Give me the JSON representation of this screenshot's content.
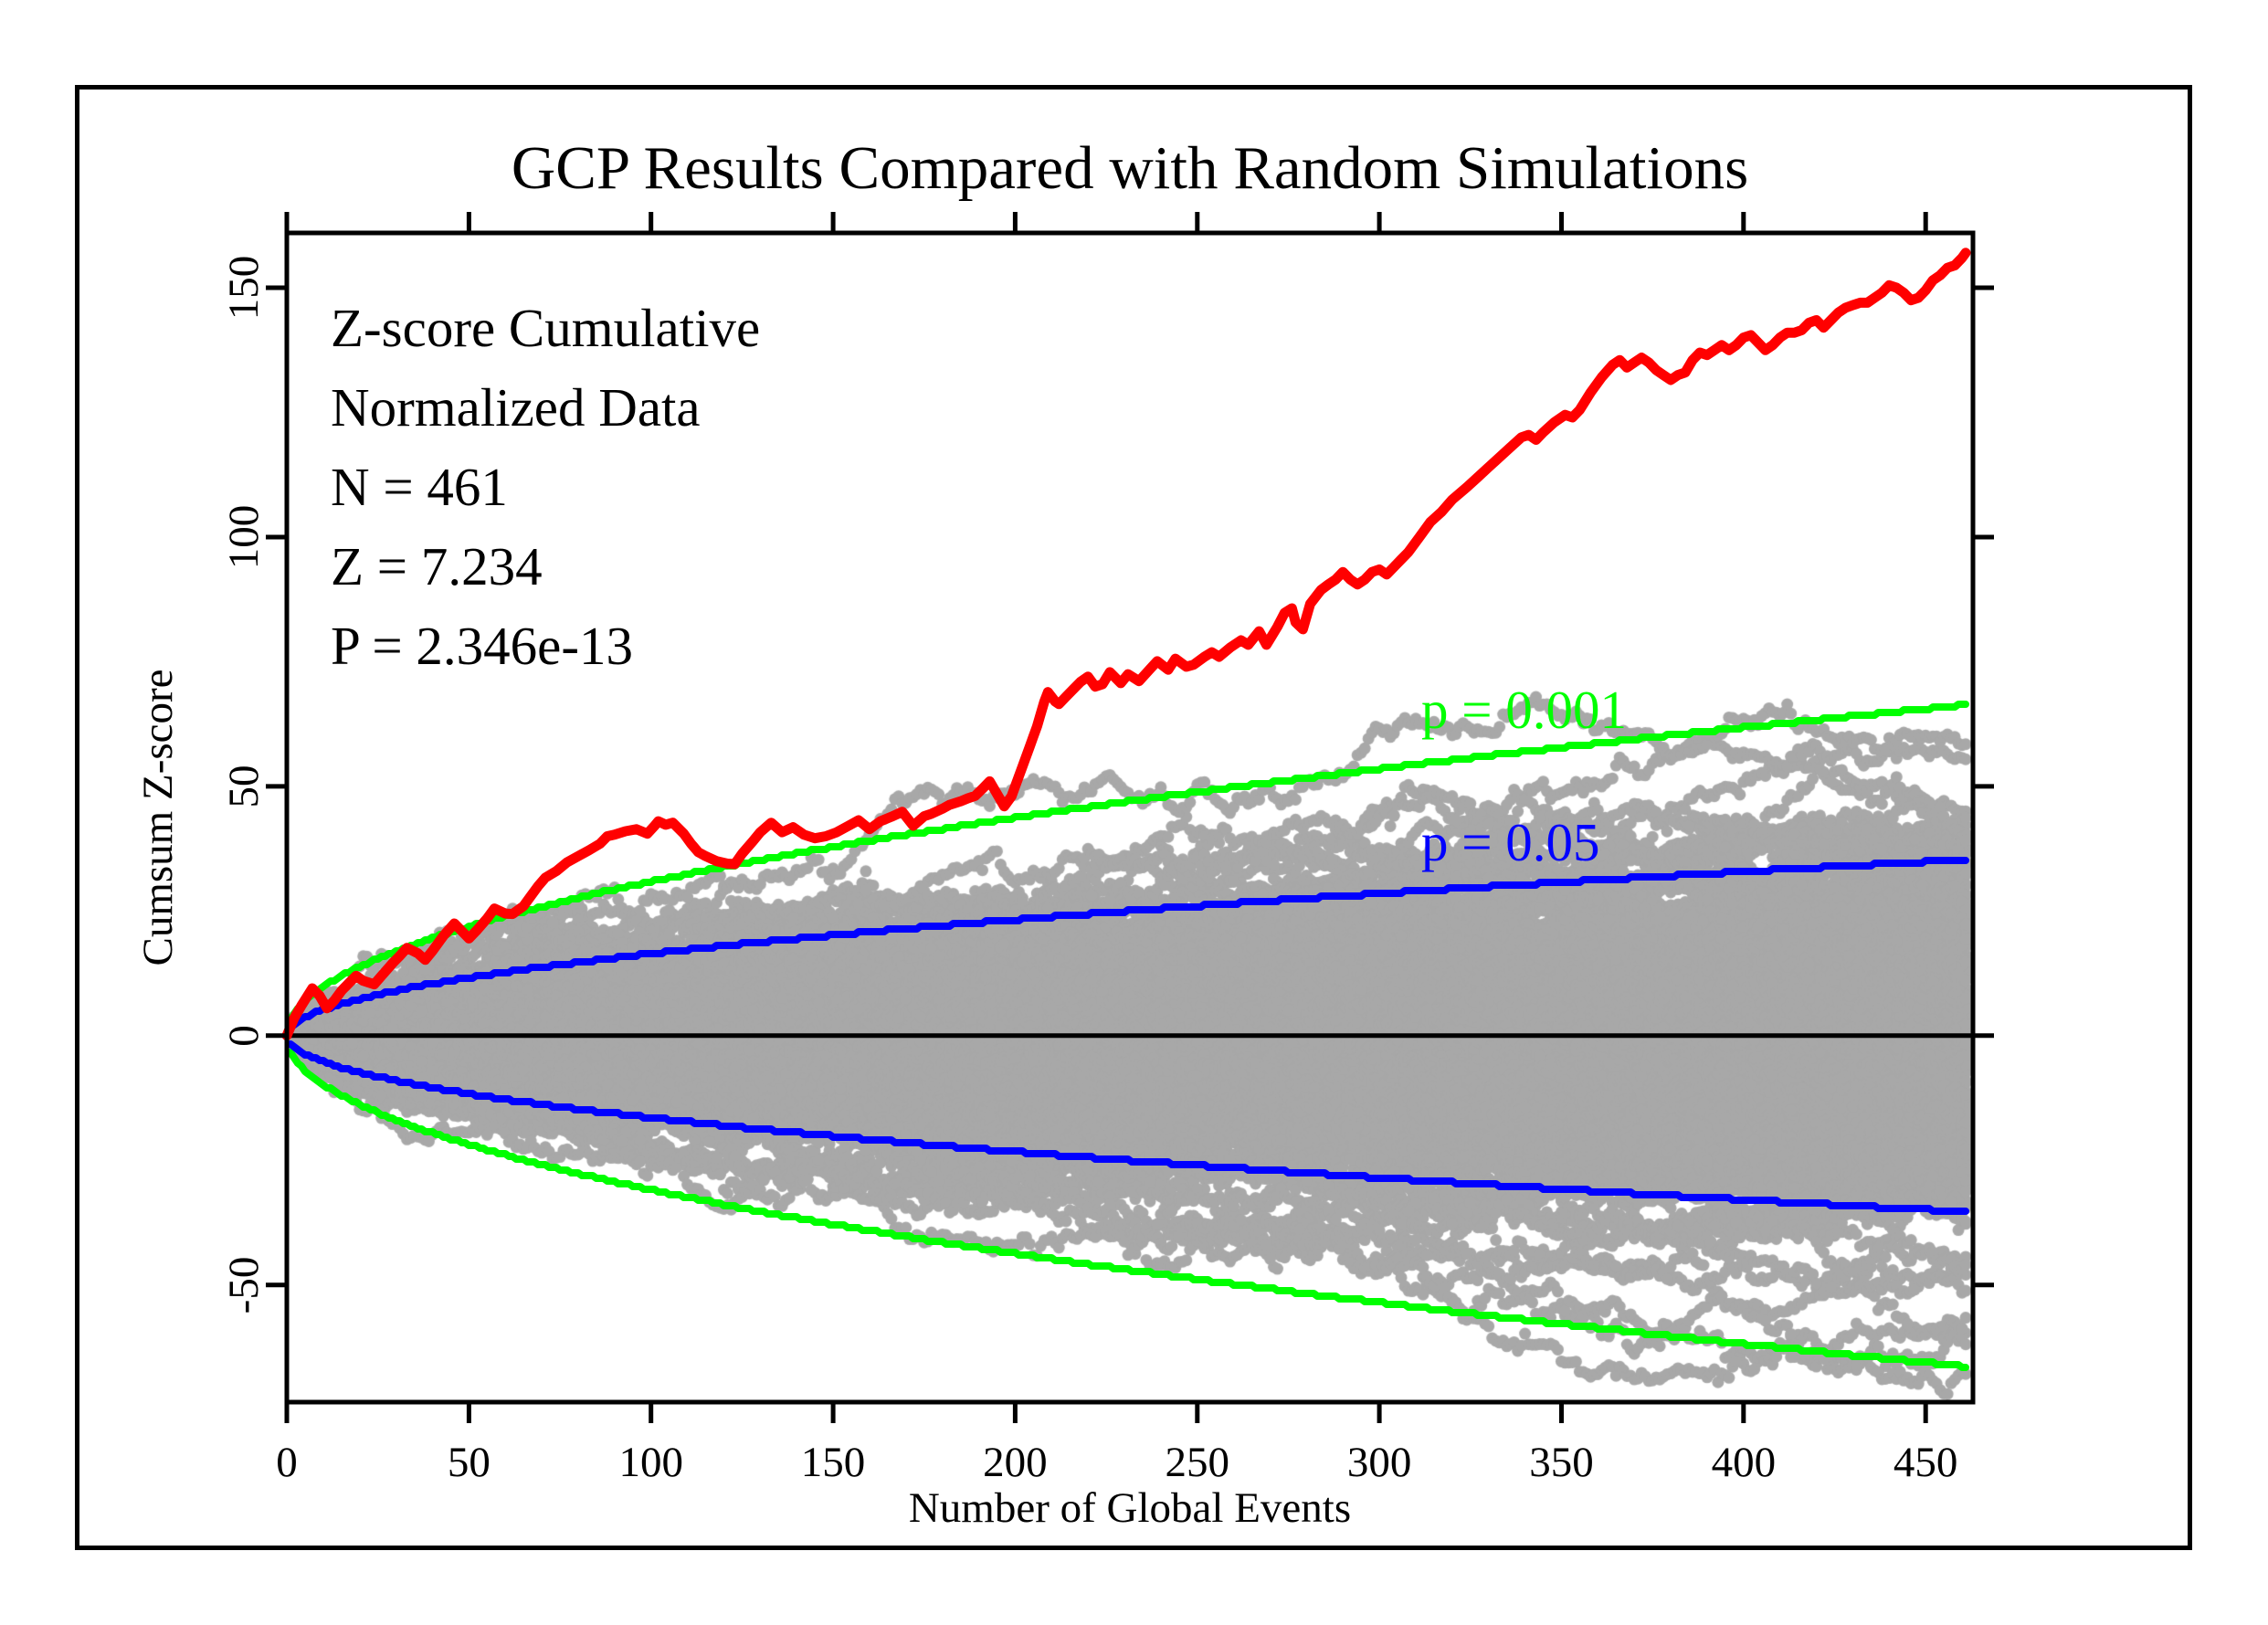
{
  "title": "GCP Results Compared with Random Simulations",
  "annotation": [
    "Z-score Cumulative",
    "Normalized Data",
    "N = 461",
    "Z = 7.234",
    "P = 2.346e-13"
  ],
  "labels": {
    "p001": "p = 0.001",
    "p05": "p = 0.05"
  },
  "colors": {
    "red": "#ff0000",
    "green": "#00ff00",
    "blue": "#0000ff",
    "gray": "#a8a8a8",
    "axis": "#000000",
    "background": "#ffffff"
  },
  "chart_data": {
    "type": "line",
    "title": "GCP Results Compared with Random Simulations",
    "xlabel": "Number of Global Events",
    "ylabel": "Cumsum Z-score",
    "xlim": [
      0,
      463
    ],
    "ylim": [
      -73.5,
      161
    ],
    "x_ticks": [
      0,
      50,
      100,
      150,
      200,
      250,
      300,
      350,
      400,
      450
    ],
    "y_ticks": [
      -50,
      0,
      50,
      100,
      150
    ],
    "mirror_ticks": true,
    "grid": false,
    "zero_line": true,
    "stats": {
      "N": 461,
      "Z": 7.234,
      "P": "2.346e-13"
    },
    "envelopes": [
      {
        "name": "p = 0.001",
        "p": 0.001,
        "z": 3.09,
        "color": "#00ff00",
        "two_sided": true
      },
      {
        "name": "p = 0.05",
        "p": 0.05,
        "z": 1.645,
        "color": "#0000ff",
        "two_sided": true
      }
    ],
    "series": [
      {
        "name": "GCP cumulative Z-score (normalized data)",
        "color": "#ff0000",
        "points": [
          [
            0,
            0
          ],
          [
            2,
            3.5
          ],
          [
            4,
            6
          ],
          [
            7,
            9.5
          ],
          [
            9,
            8
          ],
          [
            11,
            5.5
          ],
          [
            13,
            7
          ],
          [
            15,
            9
          ],
          [
            17,
            10.5
          ],
          [
            19,
            12
          ],
          [
            21,
            11
          ],
          [
            24,
            10.3
          ],
          [
            26,
            12
          ],
          [
            29,
            14.5
          ],
          [
            31,
            16
          ],
          [
            33,
            17.6
          ],
          [
            36,
            16.5
          ],
          [
            38,
            15.2
          ],
          [
            40,
            17
          ],
          [
            43,
            20
          ],
          [
            46,
            22.5
          ],
          [
            48,
            21
          ],
          [
            50,
            19.5
          ],
          [
            52,
            21
          ],
          [
            55,
            23.5
          ],
          [
            57,
            25.5
          ],
          [
            60,
            24.5
          ],
          [
            62,
            24.4
          ],
          [
            65,
            26
          ],
          [
            67,
            28
          ],
          [
            69,
            30
          ],
          [
            71,
            31.7
          ],
          [
            74,
            33
          ],
          [
            77,
            34.8
          ],
          [
            80,
            36
          ],
          [
            83,
            37.2
          ],
          [
            86,
            38.5
          ],
          [
            88,
            40
          ],
          [
            90,
            40.3
          ],
          [
            93,
            41
          ],
          [
            96,
            41.4
          ],
          [
            99,
            40.5
          ],
          [
            101,
            42.1
          ],
          [
            102,
            43
          ],
          [
            104,
            42.3
          ],
          [
            106,
            42.7
          ],
          [
            109,
            40.5
          ],
          [
            111,
            38.5
          ],
          [
            113,
            36.8
          ],
          [
            115,
            36
          ],
          [
            118,
            35
          ],
          [
            121,
            34.5
          ],
          [
            123,
            34.4
          ],
          [
            125,
            36.5
          ],
          [
            128,
            39
          ],
          [
            130,
            40.8
          ],
          [
            133,
            42.7
          ],
          [
            136,
            40.8
          ],
          [
            139,
            41.8
          ],
          [
            142,
            40.3
          ],
          [
            145,
            39.6
          ],
          [
            148,
            40
          ],
          [
            151,
            40.8
          ],
          [
            154,
            42
          ],
          [
            157,
            43.2
          ],
          [
            160,
            41.4
          ],
          [
            163,
            43
          ],
          [
            166,
            43.9
          ],
          [
            169,
            44.9
          ],
          [
            172,
            42.1
          ],
          [
            175,
            44
          ],
          [
            177,
            44.5
          ],
          [
            180,
            45.5
          ],
          [
            182,
            46.3
          ],
          [
            185,
            47
          ],
          [
            187,
            47.6
          ],
          [
            189,
            48.1
          ],
          [
            191,
            49.5
          ],
          [
            193,
            51
          ],
          [
            195,
            48.5
          ],
          [
            197,
            46
          ],
          [
            199,
            48
          ],
          [
            200,
            50
          ],
          [
            202,
            54
          ],
          [
            204,
            58
          ],
          [
            205,
            60
          ],
          [
            206,
            62
          ],
          [
            207,
            64.5
          ],
          [
            208,
            67
          ],
          [
            209,
            68.9
          ],
          [
            211,
            67
          ],
          [
            212,
            66.5
          ],
          [
            214,
            68
          ],
          [
            216,
            69.5
          ],
          [
            218,
            71
          ],
          [
            220,
            72
          ],
          [
            222,
            70
          ],
          [
            224,
            70.5
          ],
          [
            226,
            72.9
          ],
          [
            229,
            70.7
          ],
          [
            231,
            72.5
          ],
          [
            234,
            71.1
          ],
          [
            237,
            73.5
          ],
          [
            239,
            75.1
          ],
          [
            242,
            73.4
          ],
          [
            244,
            75.6
          ],
          [
            247,
            74
          ],
          [
            249,
            74.4
          ],
          [
            252,
            76
          ],
          [
            254,
            76.9
          ],
          [
            256,
            76
          ],
          [
            259,
            77.8
          ],
          [
            262,
            79.3
          ],
          [
            264,
            78.4
          ],
          [
            267,
            81.1
          ],
          [
            269,
            78.4
          ],
          [
            272,
            82
          ],
          [
            274,
            84.8
          ],
          [
            276,
            85.7
          ],
          [
            277,
            82.9
          ],
          [
            279,
            81.5
          ],
          [
            281,
            86.6
          ],
          [
            284,
            89.4
          ],
          [
            286,
            90.5
          ],
          [
            288,
            91.5
          ],
          [
            290,
            93
          ],
          [
            292,
            91.5
          ],
          [
            294,
            90.5
          ],
          [
            296,
            91.5
          ],
          [
            298,
            93
          ],
          [
            300,
            93.5
          ],
          [
            302,
            92.5
          ],
          [
            304,
            94
          ],
          [
            306,
            95.5
          ],
          [
            308,
            97
          ],
          [
            311,
            100
          ],
          [
            314,
            103
          ],
          [
            317,
            105
          ],
          [
            320,
            107.5
          ],
          [
            324,
            110
          ],
          [
            327,
            112
          ],
          [
            330,
            114
          ],
          [
            333,
            116
          ],
          [
            336,
            118
          ],
          [
            339,
            120
          ],
          [
            341,
            120.5
          ],
          [
            343,
            119.5
          ],
          [
            345,
            121
          ],
          [
            348,
            123
          ],
          [
            351,
            124.5
          ],
          [
            353,
            124
          ],
          [
            355,
            125.5
          ],
          [
            358,
            129
          ],
          [
            361,
            132
          ],
          [
            364,
            134.5
          ],
          [
            366,
            135.5
          ],
          [
            368,
            134
          ],
          [
            370,
            135
          ],
          [
            372,
            136
          ],
          [
            374,
            135
          ],
          [
            376,
            133.5
          ],
          [
            378,
            132.5
          ],
          [
            380,
            131.5
          ],
          [
            382,
            132.5
          ],
          [
            384,
            133
          ],
          [
            386,
            135.5
          ],
          [
            388,
            137
          ],
          [
            390,
            136.5
          ],
          [
            392,
            137.5
          ],
          [
            394,
            138.5
          ],
          [
            396,
            137.5
          ],
          [
            398,
            138.5
          ],
          [
            400,
            140
          ],
          [
            402,
            140.5
          ],
          [
            404,
            139
          ],
          [
            406,
            137.5
          ],
          [
            408,
            138.5
          ],
          [
            410,
            140
          ],
          [
            412,
            141
          ],
          [
            414,
            141
          ],
          [
            416,
            141.5
          ],
          [
            418,
            143
          ],
          [
            420,
            143.5
          ],
          [
            422,
            142
          ],
          [
            424,
            143.5
          ],
          [
            426,
            145
          ],
          [
            428,
            146
          ],
          [
            430,
            146.5
          ],
          [
            432,
            147
          ],
          [
            434,
            147
          ],
          [
            436,
            148
          ],
          [
            438,
            149
          ],
          [
            440,
            150.5
          ],
          [
            442,
            150
          ],
          [
            444,
            149
          ],
          [
            446,
            147.5
          ],
          [
            448,
            148
          ],
          [
            450,
            149.5
          ],
          [
            452,
            151.5
          ],
          [
            454,
            152.5
          ],
          [
            456,
            154
          ],
          [
            458,
            154.5
          ],
          [
            460,
            156
          ],
          [
            461,
            157
          ]
        ]
      }
    ],
    "simulations": {
      "description": "random simulation cumulative z-score cloud",
      "count": 220,
      "steps": 461,
      "seed": 7,
      "dot_radius": 6.5,
      "color": "#a8a8a8"
    }
  }
}
